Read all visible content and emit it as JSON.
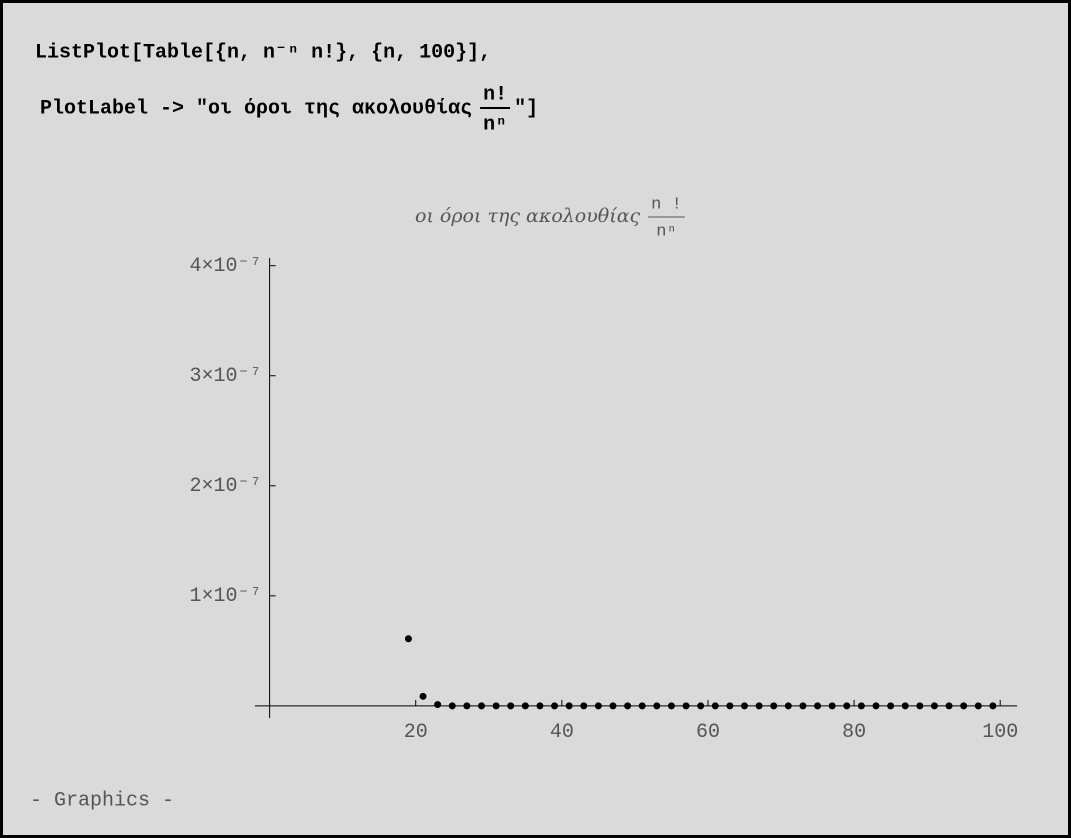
{
  "code": {
    "line1": "ListPlot[Table[{n, n⁻ⁿ n!}, {n, 100}],",
    "line2_start": "PlotLabel -> \"οι όροι της ακολουθίας",
    "line2_fraction_numerator": "n!",
    "line2_fraction_denominator": "nⁿ",
    "line2_end": "\"]"
  },
  "chart_data": {
    "type": "scatter",
    "title": "οι όροι της ακολουθίας",
    "title_fraction_numerator": "n !",
    "title_fraction_denominator": "nⁿ",
    "x": [
      19,
      21,
      23,
      25,
      27,
      29,
      31,
      33,
      35,
      37,
      39,
      41,
      43,
      45,
      47,
      49,
      51,
      53,
      55,
      57,
      59,
      61,
      63,
      65,
      67,
      69,
      71,
      73,
      75,
      77,
      79,
      81,
      83,
      85,
      87,
      89,
      91,
      93,
      95,
      97,
      99
    ],
    "values": [
      6.1e-08,
      8.7e-09,
      1.2e-09,
      0,
      0,
      0,
      0,
      0,
      0,
      0,
      0,
      0,
      0,
      0,
      0,
      0,
      0,
      0,
      0,
      0,
      0,
      0,
      0,
      0,
      0,
      0,
      0,
      0,
      0,
      0,
      0,
      0,
      0,
      0,
      0,
      0,
      0,
      0,
      0,
      0,
      0
    ],
    "color": "#000000",
    "xlim": [
      -2,
      102.3
    ],
    "ylim": [
      -1.1e-08,
      4.07e-07
    ],
    "xticks": [
      20,
      40,
      60,
      80,
      100
    ],
    "yticks": [
      {
        "value": 1e-07,
        "label": "1×10⁻⁷"
      },
      {
        "value": 2e-07,
        "label": "2×10⁻⁷"
      },
      {
        "value": 3e-07,
        "label": "3×10⁻⁷"
      },
      {
        "value": 4e-07,
        "label": "4×10⁻⁷"
      }
    ]
  },
  "output": "- Graphics -"
}
